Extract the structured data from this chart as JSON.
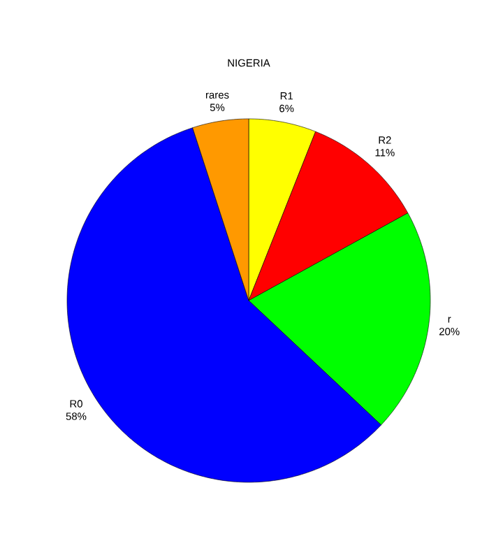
{
  "chart_data": {
    "type": "pie",
    "title": "NIGERIA",
    "categories": [
      "R1",
      "R2",
      "r",
      "R0",
      "rares"
    ],
    "values": [
      6,
      11,
      20,
      58,
      5
    ],
    "value_labels": [
      "6%",
      "11%",
      "20%",
      "58%",
      "5%"
    ],
    "colors": [
      "#ffff00",
      "#ff0000",
      "#00ff00",
      "#0000ff",
      "#ff9900"
    ]
  }
}
